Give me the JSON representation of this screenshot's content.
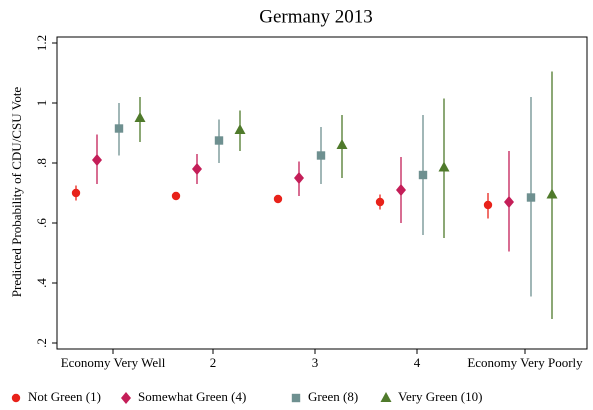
{
  "chart_data": {
    "type": "errorbar",
    "title": "Germany 2013",
    "ylabel": "Predicted Probability of CDU/CSU Vote",
    "categories": [
      "Economy Very Well",
      "2",
      "3",
      "4",
      "Economy Very Poorly"
    ],
    "ylim": [
      0.18,
      1.22
    ],
    "yticks": [
      {
        "value": 0.2,
        "label": ".2"
      },
      {
        "value": 0.4,
        "label": ".4"
      },
      {
        "value": 0.6,
        "label": ".6"
      },
      {
        "value": 0.8,
        "label": ".8"
      },
      1,
      1.2
    ],
    "grid": false,
    "legend": "bottom",
    "series": [
      {
        "name": "Not Green (1)",
        "color": "#e8221a",
        "marker": "circle",
        "values": [
          0.7,
          0.69,
          0.68,
          0.67,
          0.66
        ],
        "lower": [
          0.675,
          0.68,
          0.67,
          0.645,
          0.615
        ],
        "upper": [
          0.725,
          0.7,
          0.69,
          0.695,
          0.7
        ]
      },
      {
        "name": "Somewhat Green (4)",
        "color": "#c41e58",
        "marker": "diamond",
        "values": [
          0.81,
          0.78,
          0.75,
          0.71,
          0.67
        ],
        "lower": [
          0.73,
          0.73,
          0.69,
          0.6,
          0.505
        ],
        "upper": [
          0.895,
          0.83,
          0.805,
          0.82,
          0.84
        ]
      },
      {
        "name": "Green (8)",
        "color": "#6e9090",
        "marker": "square",
        "values": [
          0.915,
          0.875,
          0.825,
          0.76,
          0.685
        ],
        "lower": [
          0.825,
          0.8,
          0.73,
          0.56,
          0.355
        ],
        "upper": [
          1.0,
          0.945,
          0.92,
          0.96,
          1.02
        ]
      },
      {
        "name": "Very Green (10)",
        "color": "#4f7a2b",
        "marker": "triangle",
        "values": [
          0.95,
          0.91,
          0.86,
          0.785,
          0.695
        ],
        "lower": [
          0.87,
          0.84,
          0.75,
          0.55,
          0.28
        ],
        "upper": [
          1.02,
          0.975,
          0.96,
          1.015,
          1.105
        ]
      }
    ]
  }
}
